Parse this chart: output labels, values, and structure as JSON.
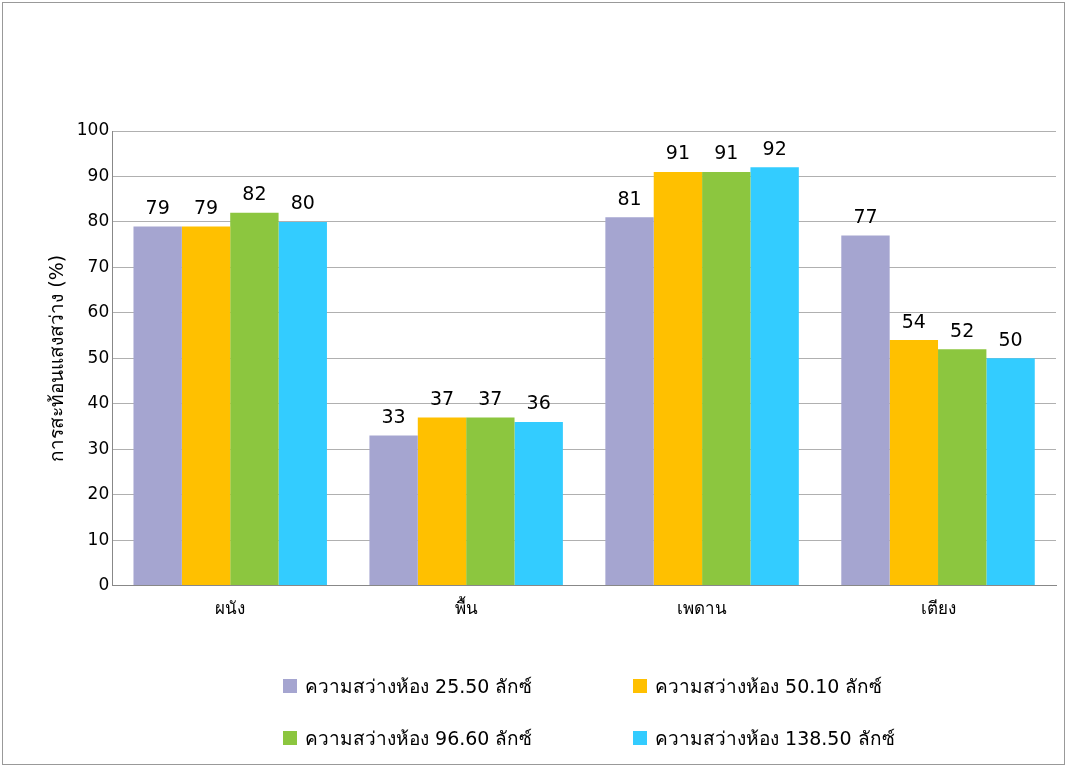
{
  "chart_data": {
    "type": "bar",
    "ylabel": "การสะท้อนแสงสว่าง (%)",
    "categories": [
      "ผนัง",
      "พื้น",
      "เพดาน",
      "เตียง"
    ],
    "series": [
      {
        "name": "ความสว่างห้อง 25.50 ลักซ์",
        "color": "#a5a5d0",
        "values": [
          79,
          33,
          81,
          77
        ]
      },
      {
        "name": "ความสว่างห้อง 50.10 ลักซ์",
        "color": "#ffc000",
        "values": [
          79,
          37,
          91,
          54
        ]
      },
      {
        "name": "ความสว่างห้อง 96.60 ลักซ์",
        "color": "#8cc63f",
        "values": [
          82,
          37,
          91,
          52
        ]
      },
      {
        "name": "ความสว่างห้อง 138.50 ลักซ์",
        "color": "#33ccff",
        "values": [
          80,
          36,
          92,
          50
        ]
      }
    ],
    "ylim": [
      0,
      100
    ],
    "yticks": [
      0,
      10,
      20,
      30,
      40,
      50,
      60,
      70,
      80,
      90,
      100
    ],
    "grid": "y",
    "legend": "bottom",
    "data_labels": true
  }
}
